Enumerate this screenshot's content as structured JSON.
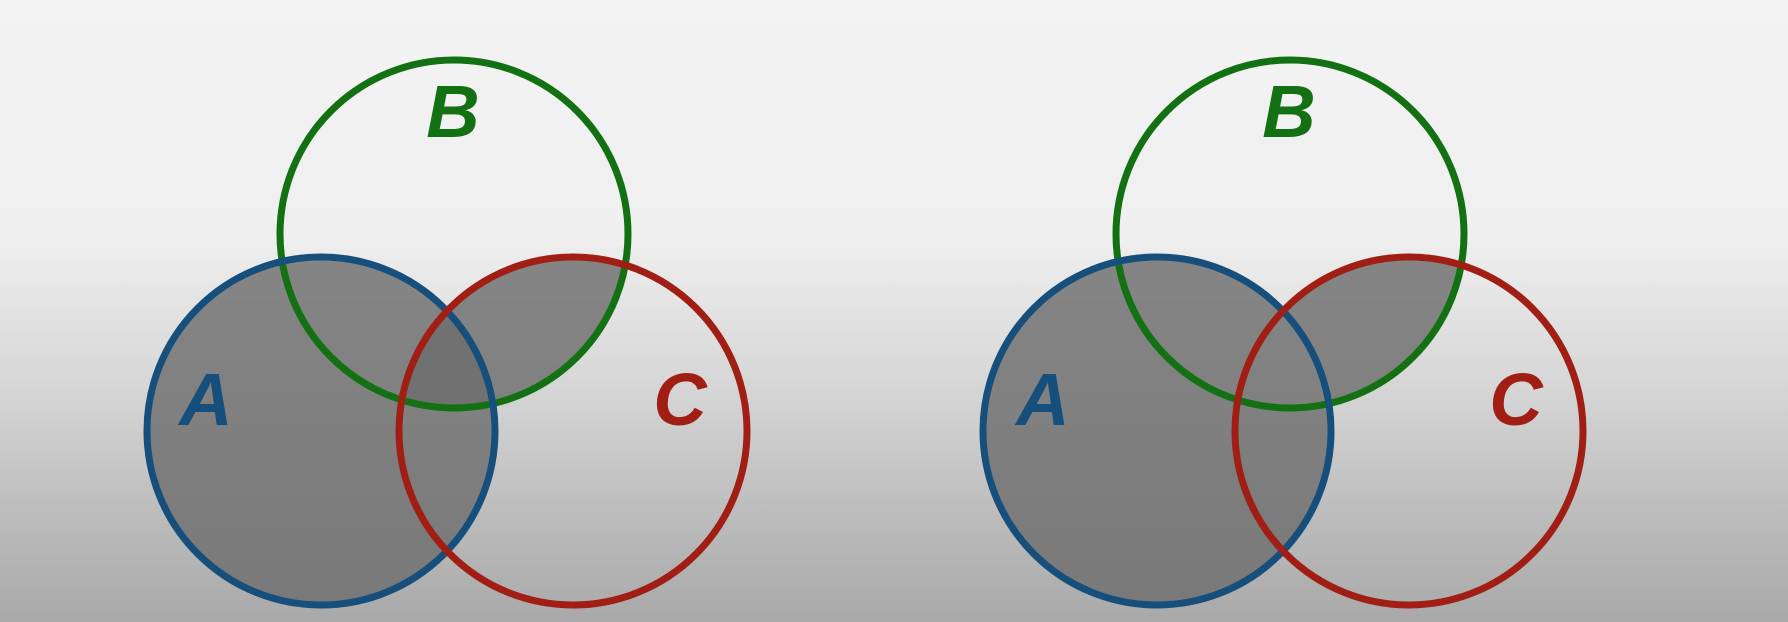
{
  "colors": {
    "set_a": "#164f7c",
    "set_b": "#137113",
    "set_c": "#a11e14",
    "shade": "#6e6e6e"
  },
  "diagrams": [
    {
      "name": "venn-left",
      "labels": {
        "a": "A",
        "b": "B",
        "c": "C"
      },
      "shaded_regions": [
        "A",
        "A∩B",
        "B∩C"
      ]
    },
    {
      "name": "venn-right",
      "labels": {
        "a": "A",
        "b": "B",
        "c": "C"
      },
      "shaded_regions": [
        "A",
        "B∩C"
      ]
    }
  ]
}
